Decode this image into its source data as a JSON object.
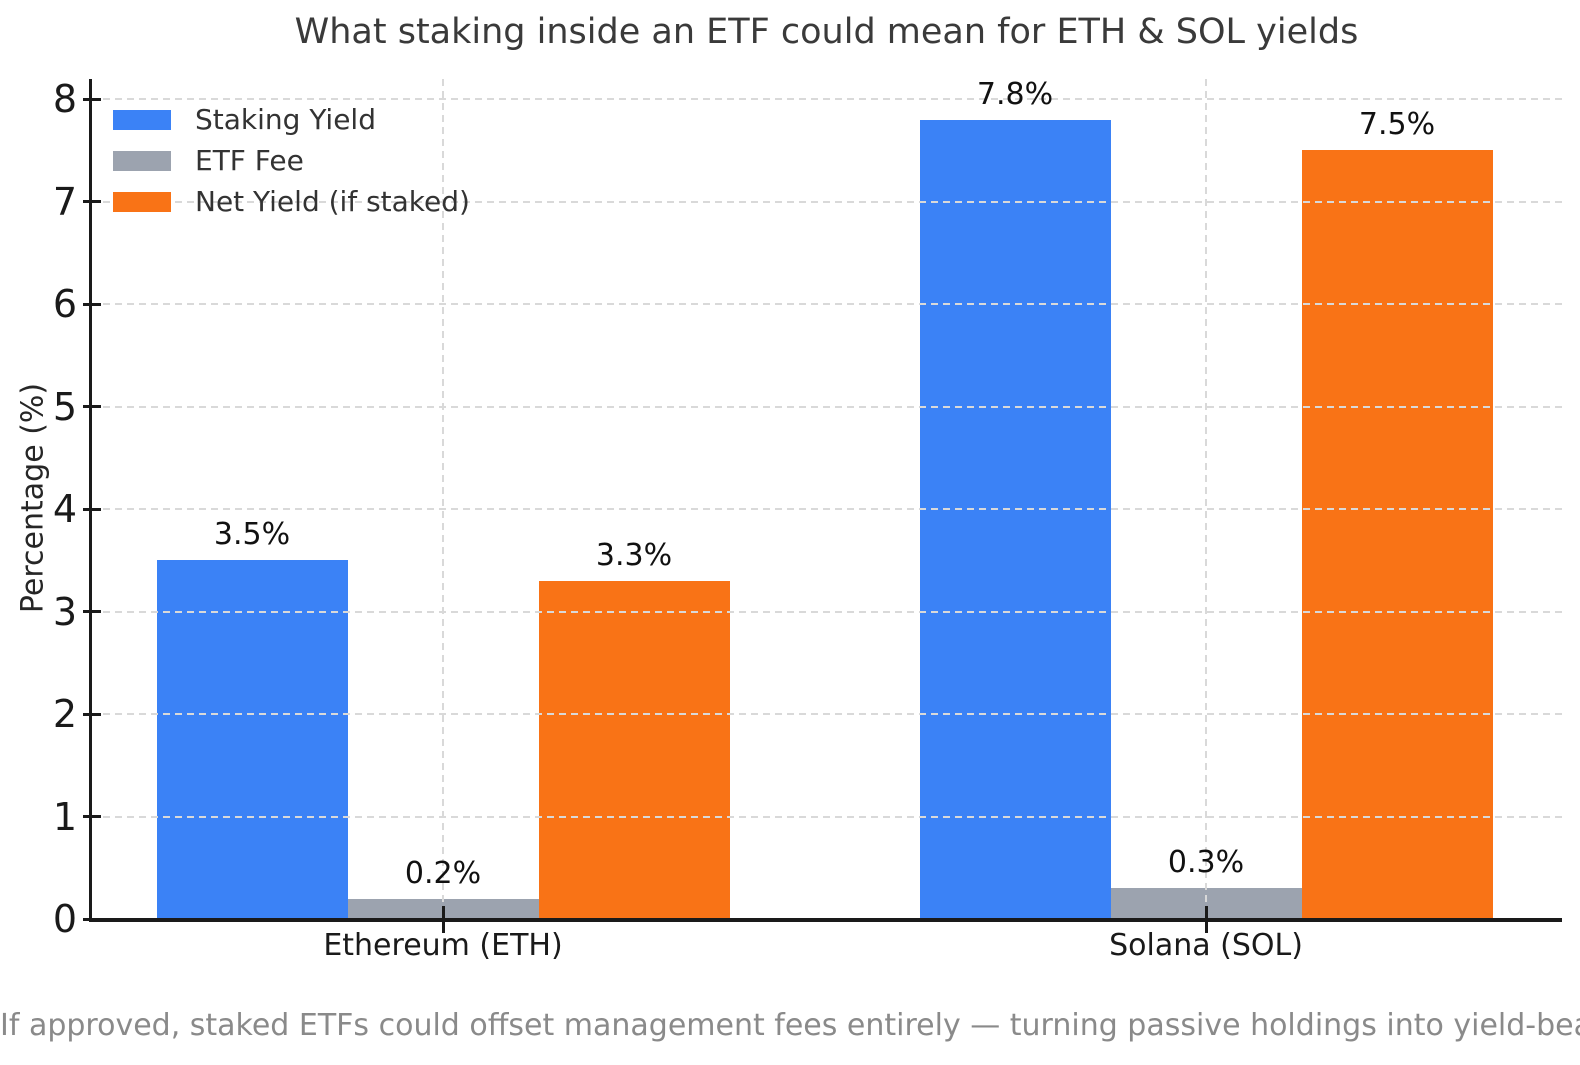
{
  "title": "What staking inside an ETF could mean for ETH & SOL yields",
  "footer": "If approved, staked ETFs could offset management fees entirely — turning passive holdings into yield-bearing assets.",
  "chart_data": {
    "type": "bar",
    "title": "What staking inside an ETF could mean for ETH & SOL yields",
    "xlabel": "",
    "ylabel": "Percentage (%)",
    "categories": [
      "Ethereum (ETH)",
      "Solana (SOL)"
    ],
    "series": [
      {
        "name": "Staking Yield",
        "color": "#3b82f6",
        "values": [
          3.5,
          7.8
        ],
        "labels": [
          "3.5%",
          "7.8%"
        ]
      },
      {
        "name": "ETF Fee",
        "color": "#9ca3af",
        "values": [
          0.2,
          0.3
        ],
        "labels": [
          "0.2%",
          "0.3%"
        ]
      },
      {
        "name": "Net Yield (if staked)",
        "color": "#f97316",
        "values": [
          3.3,
          7.5
        ],
        "labels": [
          "3.3%",
          "7.5%"
        ]
      }
    ],
    "ylim": [
      0,
      8.2
    ],
    "yticks": [
      "0",
      "1",
      "2",
      "3",
      "4",
      "5",
      "6",
      "7",
      "8"
    ],
    "grid": true,
    "grid_style": "dashed",
    "legend_position": "upper left",
    "annotation": "If approved, staked ETFs could offset management fees entirely — turning passive holdings into yield-bearing assets."
  },
  "colors": {
    "axis": "#1a1a1a",
    "grid": "#d9d9d9",
    "title_text": "#3a3a3a",
    "footer_text": "#8a8a8a"
  }
}
